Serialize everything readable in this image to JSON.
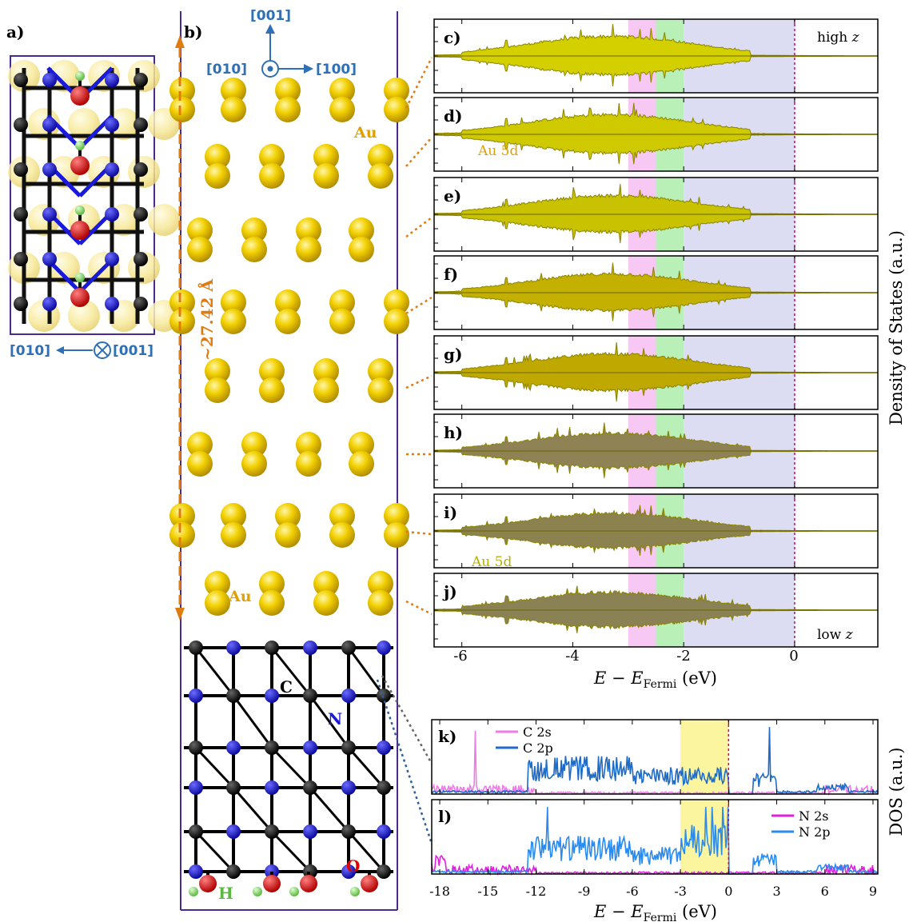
{
  "panel_labels": {
    "a": "a)",
    "b": "b)",
    "c": "c)",
    "d": "d)",
    "e": "e)",
    "f": "f)",
    "g": "g)",
    "h": "h)",
    "i": "i)",
    "j": "j)",
    "k": "k)",
    "l": "l)"
  },
  "structure": {
    "dir_top": "[001]",
    "dir_left": "[010]",
    "dir_right": "[100]",
    "dir_a_left": "[010]",
    "dir_a_right": "[001]",
    "height_label": "~27.42 Å",
    "au_label_top": "Au",
    "au_label_bottom": "Au",
    "atom_C": "C",
    "atom_N": "N",
    "atom_O": "O",
    "atom_H": "H"
  },
  "colors": {
    "gold": "#e6c200",
    "carbon": "#111111",
    "nitrogen": "#1a1adb",
    "oxygen": "#e00000",
    "hydrogen": "#8de06a",
    "bond": "#000000",
    "frame": "#4b2a8f",
    "accent_orange": "#e07b10",
    "direction_blue": "#2e6fb5",
    "pink_band": "#f8c8f4",
    "green_band": "#b8f0b8",
    "lavender_band": "#dcdcf2",
    "yellow_band": "#fbf5a0",
    "fermi_line": "#d0006f"
  },
  "chart_data": [
    {
      "type": "area",
      "title": "",
      "xlabel": "E − E_Fermi (eV)",
      "ylabel": "Density of States (a.u.)",
      "xlim": [
        -6.5,
        1.5
      ],
      "x_ticks": [
        -6,
        -4,
        -2,
        0
      ],
      "highlight_bands_eV": [
        [
          -3.0,
          -2.5,
          "pink"
        ],
        [
          -2.5,
          -2.0,
          "green"
        ],
        [
          -2.0,
          0.0,
          "lavender"
        ]
      ],
      "fermi_level": 0,
      "panels": [
        {
          "label": "c)",
          "note": "high z",
          "fill": "#d4d000",
          "envelope_max": 1.0
        },
        {
          "label": "d)",
          "note": "Au 5d",
          "fill": "#cfca00",
          "envelope_max": 1.0
        },
        {
          "label": "e)",
          "note": "",
          "fill": "#c9c200",
          "envelope_max": 0.95
        },
        {
          "label": "f)",
          "note": "",
          "fill": "#c4b000",
          "envelope_max": 0.95
        },
        {
          "label": "g)",
          "note": "",
          "fill": "#bfa800",
          "envelope_max": 0.95
        },
        {
          "label": "h)",
          "note": "",
          "fill": "#8f8255",
          "envelope_max": 0.9
        },
        {
          "label": "i)",
          "note": "Au 5d",
          "fill": "#8c8250",
          "envelope_max": 0.9
        },
        {
          "label": "j)",
          "note": "low z",
          "fill": "#8a8255",
          "envelope_max": 0.9
        }
      ]
    },
    {
      "type": "line",
      "title": "",
      "xlabel": "E − E_Fermi (eV)",
      "ylabel": "DOS (a.u.)",
      "xlim": [
        -18.5,
        9.3
      ],
      "x_ticks": [
        -18,
        -15,
        -12,
        -9,
        -6,
        -3,
        0,
        3,
        6,
        9
      ],
      "highlight_band_eV": [
        -3.0,
        0.0
      ],
      "fermi_level": 0,
      "panels": [
        {
          "label": "k)",
          "series": [
            {
              "name": "C 2s",
              "color": "#f07ae8"
            },
            {
              "name": "C 2p",
              "color": "#1e6bc8"
            }
          ]
        },
        {
          "label": "l)",
          "series": [
            {
              "name": "N 2s",
              "color": "#e020e0"
            },
            {
              "name": "N 2p",
              "color": "#2a8cf0"
            }
          ]
        }
      ]
    }
  ]
}
